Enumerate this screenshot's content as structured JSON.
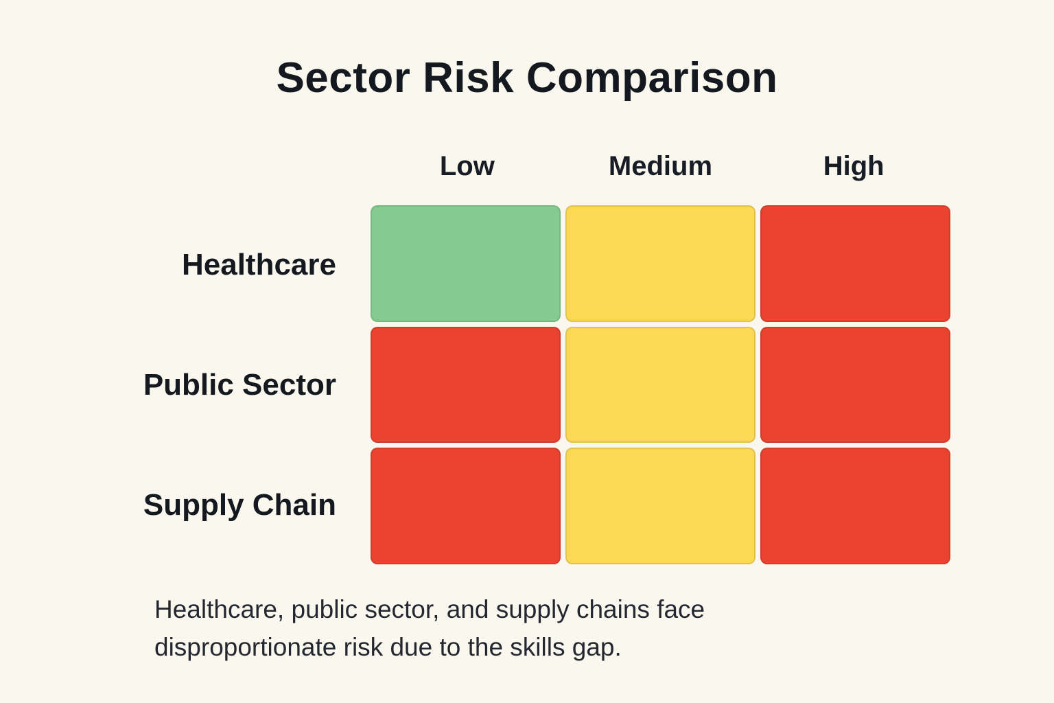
{
  "chart_data": {
    "type": "heatmap",
    "title": "Sector Risk Comparison",
    "columns": [
      "Low",
      "Medium",
      "High"
    ],
    "rows": [
      "Healthcare",
      "Public Sector",
      "Supply Chain"
    ],
    "cells": [
      [
        "green",
        "yellow",
        "red"
      ],
      [
        "red",
        "yellow",
        "red"
      ],
      [
        "red",
        "yellow",
        "red"
      ]
    ],
    "colors": {
      "green": "#85cb90",
      "yellow": "#fbd955",
      "red": "#ea4430"
    },
    "background_color": "#faf7ee",
    "text_color": "#14181f",
    "legend_position": "none",
    "grid": false,
    "caption": {
      "lines": [
        "Healthcare, public sector, and supply chains face",
        "disproportionate risk due to the skills gap."
      ]
    }
  }
}
